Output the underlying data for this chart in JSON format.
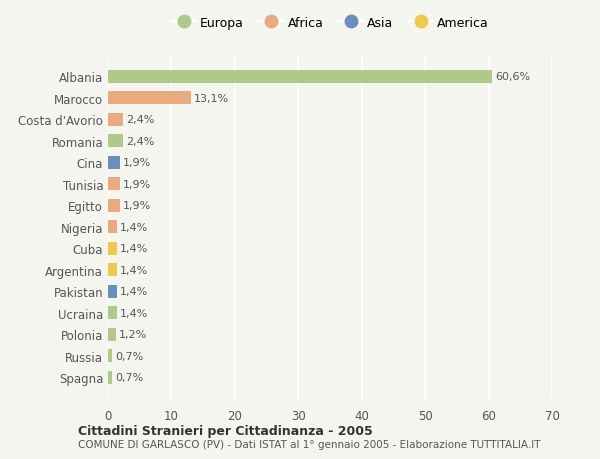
{
  "countries": [
    "Albania",
    "Marocco",
    "Costa d'Avorio",
    "Romania",
    "Cina",
    "Tunisia",
    "Egitto",
    "Nigeria",
    "Cuba",
    "Argentina",
    "Pakistan",
    "Ucraina",
    "Polonia",
    "Russia",
    "Spagna"
  ],
  "values": [
    60.6,
    13.1,
    2.4,
    2.4,
    1.9,
    1.9,
    1.9,
    1.4,
    1.4,
    1.4,
    1.4,
    1.4,
    1.2,
    0.7,
    0.7
  ],
  "labels": [
    "60,6%",
    "13,1%",
    "2,4%",
    "2,4%",
    "1,9%",
    "1,9%",
    "1,9%",
    "1,4%",
    "1,4%",
    "1,4%",
    "1,4%",
    "1,4%",
    "1,2%",
    "0,7%",
    "0,7%"
  ],
  "regions": [
    "Europa",
    "Africa",
    "Africa",
    "Europa",
    "Asia",
    "Africa",
    "Africa",
    "Africa",
    "America",
    "America",
    "Asia",
    "Europa",
    "Europa",
    "Europa",
    "Europa"
  ],
  "region_colors": {
    "Europa": "#aec98a",
    "Africa": "#e8aa7e",
    "Asia": "#6b8ebf",
    "America": "#f0c84e"
  },
  "legend_order": [
    "Europa",
    "Africa",
    "Asia",
    "America"
  ],
  "xlim": [
    0,
    70
  ],
  "xticks": [
    0,
    10,
    20,
    30,
    40,
    50,
    60,
    70
  ],
  "title": "Cittadini Stranieri per Cittadinanza - 2005",
  "subtitle": "COMUNE DI GARLASCO (PV) - Dati ISTAT al 1° gennaio 2005 - Elaborazione TUTTITALIA.IT",
  "background_color": "#f5f5f0",
  "grid_color": "#ffffff",
  "bar_height": 0.6
}
